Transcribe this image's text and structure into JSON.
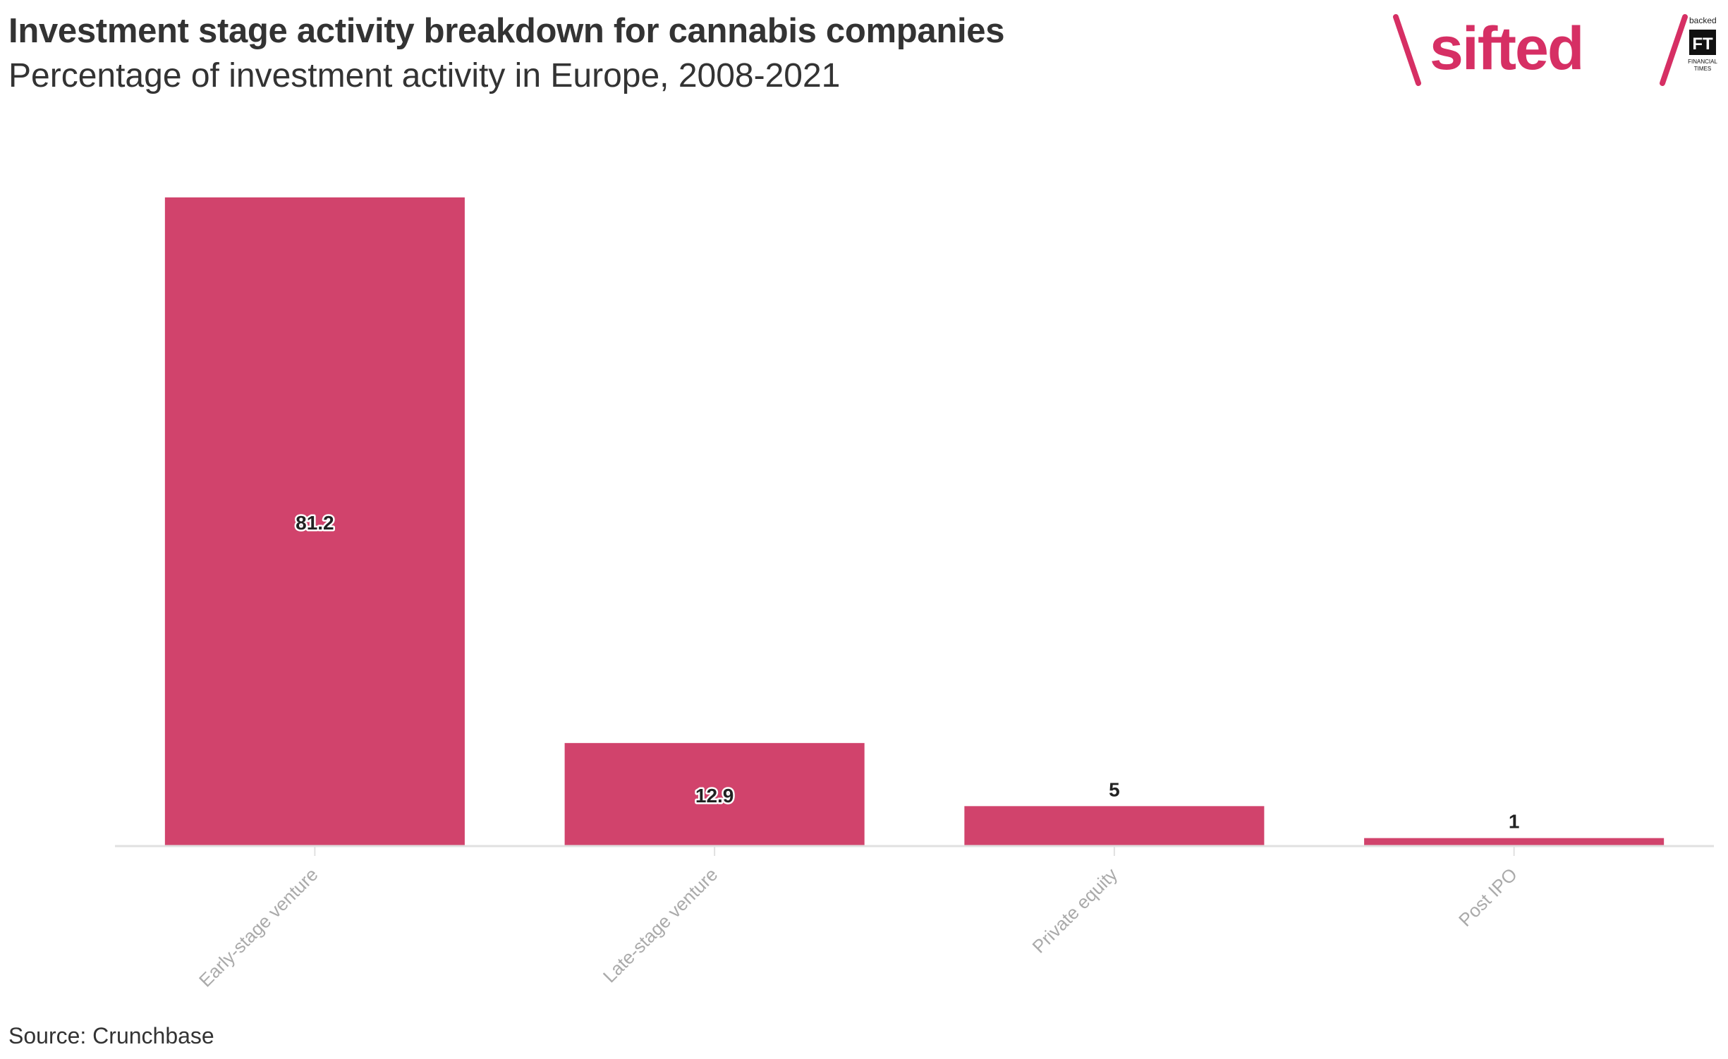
{
  "header": {
    "title": "Investment stage activity breakdown for cannabis companies",
    "subtitle": "Percentage of investment activity in Europe, 2008-2021"
  },
  "footer": {
    "source": "Source: Crunchbase"
  },
  "logo": {
    "brand": "sifted",
    "backed_by": "backed by",
    "ft_mark": "FT",
    "ft_name_line1": "FINANCIAL",
    "ft_name_line2": "TIMES"
  },
  "colors": {
    "bar": "#d1436c",
    "brand": "#d62f64",
    "axis": "#e0e0e0",
    "tick_label": "#aaaaaa"
  },
  "chart_data": {
    "type": "bar",
    "title": "Investment stage activity breakdown for cannabis companies",
    "subtitle": "Percentage of investment activity in Europe, 2008-2021",
    "categories": [
      "Early-stage venture",
      "Late-stage venture",
      "Private equity",
      "Post IPO"
    ],
    "values": [
      81.2,
      12.9,
      5,
      1
    ],
    "data_labels": [
      "81.2",
      "12.9",
      "5",
      "1"
    ],
    "ylim": [
      0,
      81.2
    ],
    "grid": false,
    "legend": "none",
    "xlabel": "",
    "ylabel": ""
  }
}
